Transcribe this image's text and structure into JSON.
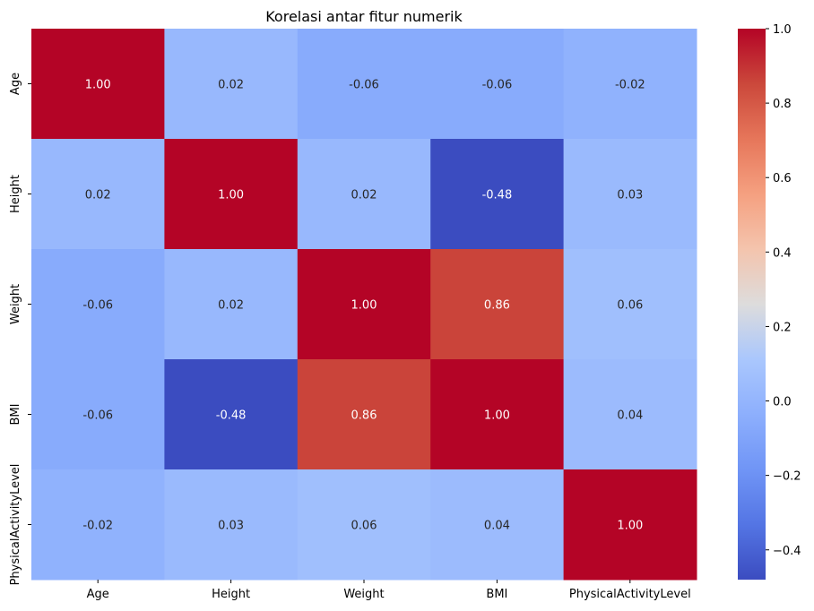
{
  "chart_data": {
    "type": "heatmap",
    "title": "Korelasi antar fitur numerik",
    "x_labels": [
      "Age",
      "Height",
      "Weight",
      "BMI",
      "PhysicalActivityLevel"
    ],
    "y_labels": [
      "Age",
      "Height",
      "Weight",
      "BMI",
      "PhysicalActivityLevel"
    ],
    "values": [
      [
        1.0,
        0.02,
        -0.06,
        -0.06,
        -0.02
      ],
      [
        0.02,
        1.0,
        0.02,
        -0.48,
        0.03
      ],
      [
        -0.06,
        0.02,
        1.0,
        0.86,
        0.06
      ],
      [
        -0.06,
        -0.48,
        0.86,
        1.0,
        0.04
      ],
      [
        -0.02,
        0.03,
        0.06,
        0.04,
        1.0
      ]
    ],
    "value_format": "0.00",
    "colormap": "coolwarm",
    "colorbar": {
      "range": [
        -0.48,
        1.0
      ],
      "ticks": [
        -0.4,
        -0.2,
        0.0,
        0.2,
        0.4,
        0.6,
        0.8,
        1.0
      ],
      "tick_labels": [
        "−0.4",
        "−0.2",
        "0.0",
        "0.2",
        "0.4",
        "0.6",
        "0.8",
        "1.0"
      ]
    },
    "grid": false
  }
}
